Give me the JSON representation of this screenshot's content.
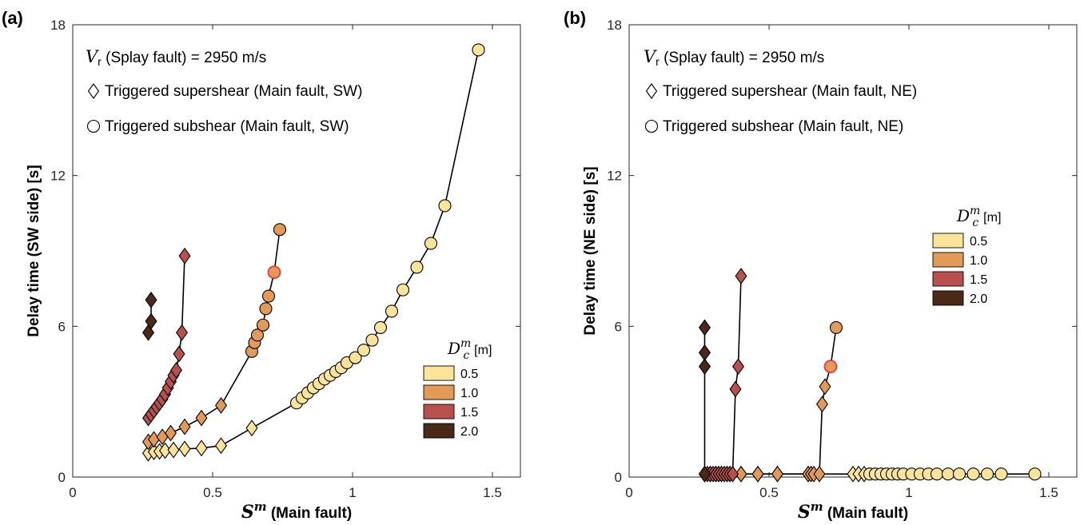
{
  "chart_data": [
    {
      "panel": "(a)",
      "type": "line+scatter",
      "xlabel_symbol": "S",
      "xlabel_sup": "m",
      "xlabel_text": " (Main fault)",
      "ylabel": "Delay time (SW side) [s]",
      "xlim": [
        0,
        1.6
      ],
      "ylim": [
        0,
        18
      ],
      "xticks": [
        0,
        0.5,
        1,
        1.5
      ],
      "xtick_labels": [
        "0",
        "0.5",
        "1",
        "1.5"
      ],
      "yticks": [
        0,
        6,
        12,
        18
      ],
      "ytick_labels": [
        "0",
        "6",
        "12",
        "18"
      ],
      "annotation": {
        "vr_symbol": "V",
        "vr_sub": "r",
        "vr_text": " (Splay fault) = 2950 m/s",
        "diamond_label": "Triggered supershear (Main fault, SW)",
        "circle_label": "Triggered subshear (Main fault, SW)"
      },
      "legend": {
        "title_symbol": "D",
        "title_sub": "c",
        "title_sup": "m",
        "title_unit": "[m]",
        "placement": "lower-right",
        "entries": [
          "0.5",
          "1.0",
          "1.5",
          "2.0"
        ]
      },
      "series": [
        {
          "name": "0.5",
          "color": "#f9e49a",
          "points": [
            {
              "x": 0.27,
              "y": 0.95,
              "m": "d"
            },
            {
              "x": 0.29,
              "y": 1.0,
              "m": "d"
            },
            {
              "x": 0.31,
              "y": 1.02,
              "m": "d"
            },
            {
              "x": 0.33,
              "y": 1.05,
              "m": "d"
            },
            {
              "x": 0.36,
              "y": 1.08,
              "m": "d"
            },
            {
              "x": 0.4,
              "y": 1.12,
              "m": "d"
            },
            {
              "x": 0.46,
              "y": 1.15,
              "m": "d"
            },
            {
              "x": 0.53,
              "y": 1.25,
              "m": "d"
            },
            {
              "x": 0.64,
              "y": 1.95,
              "m": "d"
            },
            {
              "x": 0.8,
              "y": 2.95,
              "m": "o"
            },
            {
              "x": 0.82,
              "y": 3.15,
              "m": "o"
            },
            {
              "x": 0.84,
              "y": 3.35,
              "m": "o"
            },
            {
              "x": 0.86,
              "y": 3.55,
              "m": "o"
            },
            {
              "x": 0.88,
              "y": 3.72,
              "m": "o"
            },
            {
              "x": 0.9,
              "y": 3.9,
              "m": "o"
            },
            {
              "x": 0.92,
              "y": 4.05,
              "m": "o"
            },
            {
              "x": 0.94,
              "y": 4.2,
              "m": "o"
            },
            {
              "x": 0.96,
              "y": 4.35,
              "m": "o"
            },
            {
              "x": 0.98,
              "y": 4.55,
              "m": "o"
            },
            {
              "x": 1.01,
              "y": 4.75,
              "m": "o"
            },
            {
              "x": 1.04,
              "y": 5.05,
              "m": "o"
            },
            {
              "x": 1.07,
              "y": 5.45,
              "m": "o"
            },
            {
              "x": 1.1,
              "y": 5.95,
              "m": "o"
            },
            {
              "x": 1.14,
              "y": 6.6,
              "m": "o"
            },
            {
              "x": 1.18,
              "y": 7.45,
              "m": "o"
            },
            {
              "x": 1.23,
              "y": 8.35,
              "m": "o"
            },
            {
              "x": 1.28,
              "y": 9.3,
              "m": "o"
            },
            {
              "x": 1.33,
              "y": 10.8,
              "m": "o"
            },
            {
              "x": 1.45,
              "y": 17.0,
              "m": "o"
            }
          ]
        },
        {
          "name": "1.0",
          "color": "#e29a56",
          "points": [
            {
              "x": 0.27,
              "y": 1.4,
              "m": "d"
            },
            {
              "x": 0.29,
              "y": 1.5,
              "m": "d"
            },
            {
              "x": 0.32,
              "y": 1.6,
              "m": "d"
            },
            {
              "x": 0.35,
              "y": 1.75,
              "m": "d"
            },
            {
              "x": 0.4,
              "y": 2.0,
              "m": "d"
            },
            {
              "x": 0.46,
              "y": 2.35,
              "m": "d"
            },
            {
              "x": 0.53,
              "y": 2.85,
              "m": "d"
            },
            {
              "x": 0.64,
              "y": 5.0,
              "m": "o"
            },
            {
              "x": 0.65,
              "y": 5.35,
              "m": "o"
            },
            {
              "x": 0.66,
              "y": 5.65,
              "m": "o"
            },
            {
              "x": 0.68,
              "y": 6.05,
              "m": "o"
            },
            {
              "x": 0.69,
              "y": 6.7,
              "m": "o"
            },
            {
              "x": 0.7,
              "y": 7.2,
              "m": "o"
            },
            {
              "x": 0.72,
              "y": 8.15,
              "m": "o",
              "highlight": true
            },
            {
              "x": 0.74,
              "y": 9.85,
              "m": "o"
            }
          ]
        },
        {
          "name": "1.5",
          "color": "#b8504d",
          "points": [
            {
              "x": 0.27,
              "y": 2.35,
              "m": "d"
            },
            {
              "x": 0.28,
              "y": 2.5,
              "m": "d"
            },
            {
              "x": 0.29,
              "y": 2.65,
              "m": "d"
            },
            {
              "x": 0.3,
              "y": 2.8,
              "m": "d"
            },
            {
              "x": 0.31,
              "y": 2.95,
              "m": "d"
            },
            {
              "x": 0.32,
              "y": 3.1,
              "m": "d"
            },
            {
              "x": 0.33,
              "y": 3.3,
              "m": "d"
            },
            {
              "x": 0.34,
              "y": 3.55,
              "m": "d"
            },
            {
              "x": 0.35,
              "y": 3.8,
              "m": "d"
            },
            {
              "x": 0.36,
              "y": 4.05,
              "m": "d"
            },
            {
              "x": 0.37,
              "y": 4.25,
              "m": "d"
            },
            {
              "x": 0.38,
              "y": 4.9,
              "m": "d"
            },
            {
              "x": 0.39,
              "y": 5.75,
              "m": "d"
            },
            {
              "x": 0.4,
              "y": 8.8,
              "m": "d"
            }
          ]
        },
        {
          "name": "2.0",
          "color": "#4a2a17",
          "points": [
            {
              "x": 0.27,
              "y": 5.75,
              "m": "d"
            },
            {
              "x": 0.28,
              "y": 6.2,
              "m": "d"
            },
            {
              "x": 0.28,
              "y": 7.05,
              "m": "d"
            }
          ]
        }
      ]
    },
    {
      "panel": "(b)",
      "type": "line+scatter",
      "xlabel_symbol": "S",
      "xlabel_sup": "m",
      "xlabel_text": " (Main fault)",
      "ylabel": "Delay time (NE side) [s]",
      "xlim": [
        0,
        1.6
      ],
      "ylim": [
        0,
        18
      ],
      "xticks": [
        0,
        0.5,
        1,
        1.5
      ],
      "xtick_labels": [
        "0",
        "0.5",
        "1",
        "1.5"
      ],
      "yticks": [
        0,
        6,
        12,
        18
      ],
      "ytick_labels": [
        "0",
        "6",
        "12",
        "18"
      ],
      "annotation": {
        "vr_symbol": "V",
        "vr_sub": "r",
        "vr_text": " (Splay fault) = 2950 m/s",
        "diamond_label": "Triggered supershear (Main fault, NE)",
        "circle_label": "Triggered subshear (Main fault, NE)"
      },
      "legend": {
        "title_symbol": "D",
        "title_sub": "c",
        "title_sup": "m",
        "title_unit": "[m]",
        "placement": "right",
        "entries": [
          "0.5",
          "1.0",
          "1.5",
          "2.0"
        ]
      },
      "series": [
        {
          "name": "0.5",
          "color": "#f9e49a",
          "points": [
            {
              "x": 0.27,
              "y": 0.12,
              "m": "d"
            },
            {
              "x": 0.29,
              "y": 0.12,
              "m": "d"
            },
            {
              "x": 0.31,
              "y": 0.12,
              "m": "d"
            },
            {
              "x": 0.33,
              "y": 0.12,
              "m": "d"
            },
            {
              "x": 0.36,
              "y": 0.12,
              "m": "d"
            },
            {
              "x": 0.4,
              "y": 0.12,
              "m": "d"
            },
            {
              "x": 0.46,
              "y": 0.12,
              "m": "d"
            },
            {
              "x": 0.53,
              "y": 0.12,
              "m": "d"
            },
            {
              "x": 0.64,
              "y": 0.12,
              "m": "d"
            },
            {
              "x": 0.8,
              "y": 0.12,
              "m": "d"
            },
            {
              "x": 0.82,
              "y": 0.12,
              "m": "d"
            },
            {
              "x": 0.84,
              "y": 0.12,
              "m": "d"
            },
            {
              "x": 0.86,
              "y": 0.12,
              "m": "o"
            },
            {
              "x": 0.88,
              "y": 0.12,
              "m": "o"
            },
            {
              "x": 0.9,
              "y": 0.12,
              "m": "o"
            },
            {
              "x": 0.92,
              "y": 0.12,
              "m": "o"
            },
            {
              "x": 0.94,
              "y": 0.12,
              "m": "o"
            },
            {
              "x": 0.96,
              "y": 0.12,
              "m": "o"
            },
            {
              "x": 0.98,
              "y": 0.12,
              "m": "o"
            },
            {
              "x": 1.01,
              "y": 0.12,
              "m": "o"
            },
            {
              "x": 1.04,
              "y": 0.12,
              "m": "o"
            },
            {
              "x": 1.07,
              "y": 0.12,
              "m": "o"
            },
            {
              "x": 1.1,
              "y": 0.12,
              "m": "o"
            },
            {
              "x": 1.14,
              "y": 0.12,
              "m": "o"
            },
            {
              "x": 1.18,
              "y": 0.12,
              "m": "o"
            },
            {
              "x": 1.23,
              "y": 0.12,
              "m": "o"
            },
            {
              "x": 1.28,
              "y": 0.12,
              "m": "o"
            },
            {
              "x": 1.33,
              "y": 0.12,
              "m": "o"
            },
            {
              "x": 1.45,
              "y": 0.12,
              "m": "o"
            }
          ]
        },
        {
          "name": "1.0",
          "color": "#e29a56",
          "points": [
            {
              "x": 0.27,
              "y": 0.12,
              "m": "d"
            },
            {
              "x": 0.29,
              "y": 0.12,
              "m": "d"
            },
            {
              "x": 0.32,
              "y": 0.12,
              "m": "d"
            },
            {
              "x": 0.35,
              "y": 0.12,
              "m": "d"
            },
            {
              "x": 0.4,
              "y": 0.12,
              "m": "d"
            },
            {
              "x": 0.46,
              "y": 0.12,
              "m": "d"
            },
            {
              "x": 0.53,
              "y": 0.12,
              "m": "d"
            },
            {
              "x": 0.64,
              "y": 0.12,
              "m": "d"
            },
            {
              "x": 0.65,
              "y": 0.12,
              "m": "d"
            },
            {
              "x": 0.66,
              "y": 0.12,
              "m": "d"
            },
            {
              "x": 0.68,
              "y": 0.12,
              "m": "d"
            },
            {
              "x": 0.69,
              "y": 2.9,
              "m": "d"
            },
            {
              "x": 0.7,
              "y": 3.6,
              "m": "d"
            },
            {
              "x": 0.72,
              "y": 4.4,
              "m": "o",
              "highlight": true
            },
            {
              "x": 0.74,
              "y": 5.95,
              "m": "o"
            }
          ]
        },
        {
          "name": "1.5",
          "color": "#b8504d",
          "points": [
            {
              "x": 0.27,
              "y": 0.12,
              "m": "d"
            },
            {
              "x": 0.28,
              "y": 0.12,
              "m": "d"
            },
            {
              "x": 0.29,
              "y": 0.12,
              "m": "d"
            },
            {
              "x": 0.3,
              "y": 0.12,
              "m": "d"
            },
            {
              "x": 0.31,
              "y": 0.12,
              "m": "d"
            },
            {
              "x": 0.32,
              "y": 0.12,
              "m": "d"
            },
            {
              "x": 0.33,
              "y": 0.12,
              "m": "d"
            },
            {
              "x": 0.34,
              "y": 0.12,
              "m": "d"
            },
            {
              "x": 0.35,
              "y": 0.12,
              "m": "d"
            },
            {
              "x": 0.36,
              "y": 0.12,
              "m": "d"
            },
            {
              "x": 0.37,
              "y": 0.12,
              "m": "d"
            },
            {
              "x": 0.38,
              "y": 3.5,
              "m": "d"
            },
            {
              "x": 0.39,
              "y": 4.4,
              "m": "d"
            },
            {
              "x": 0.4,
              "y": 8.0,
              "m": "d"
            }
          ]
        },
        {
          "name": "2.0",
          "color": "#4a2a17",
          "points": [
            {
              "x": 0.27,
              "y": 4.4,
              "m": "d"
            },
            {
              "x": 0.27,
              "y": 4.95,
              "m": "d"
            },
            {
              "x": 0.27,
              "y": 5.95,
              "m": "d"
            },
            {
              "x": 0.27,
              "y": 0.12,
              "m": "d"
            }
          ]
        }
      ]
    }
  ]
}
